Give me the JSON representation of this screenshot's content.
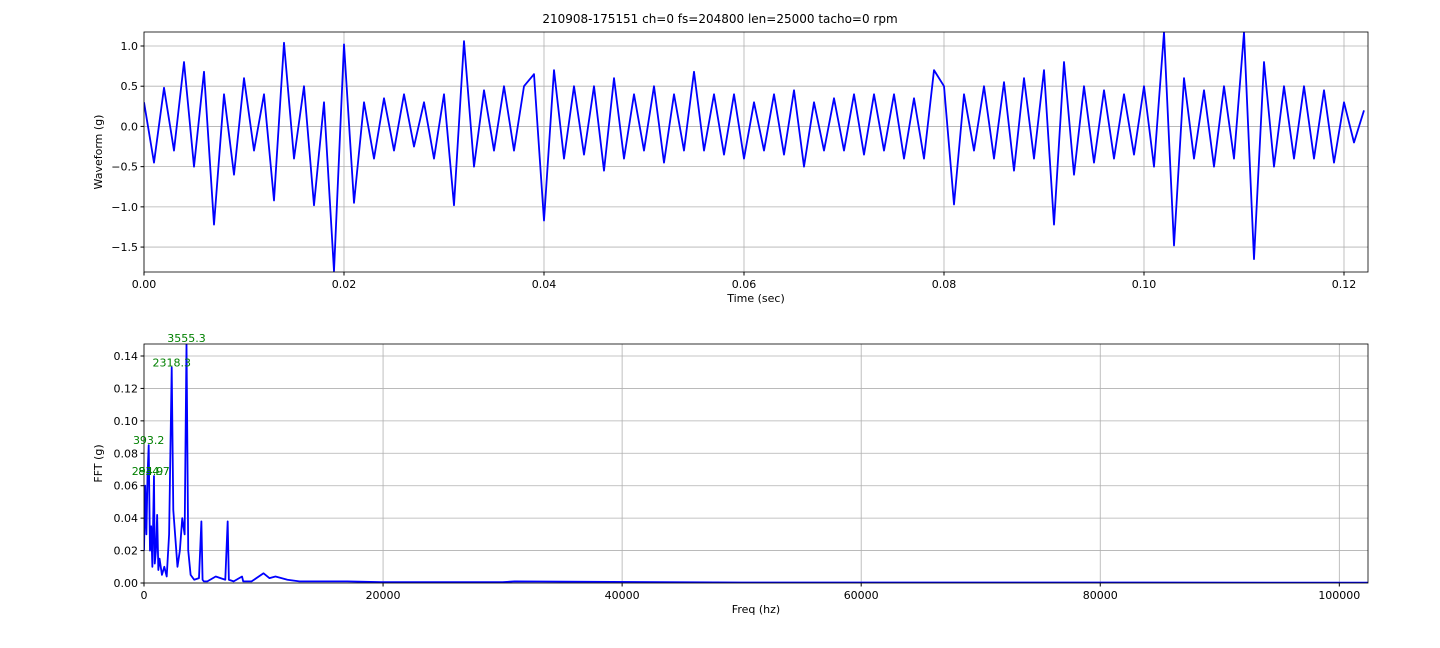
{
  "chart_data": [
    {
      "type": "line",
      "title": "210908-175151 ch=0 fs=204800 len=25000 tacho=0 rpm",
      "xlabel": "Time (sec)",
      "ylabel": "Waveform (g)",
      "color": "#0000ff",
      "grid": true,
      "xlim": [
        0,
        0.1224
      ],
      "ylim": [
        -1.81,
        1.174
      ],
      "xticks": [
        {
          "value": 0,
          "label": "0.00"
        },
        {
          "value": 0.02,
          "label": "0.02"
        },
        {
          "value": 0.04,
          "label": "0.04"
        },
        {
          "value": 0.06,
          "label": "0.06"
        },
        {
          "value": 0.08,
          "label": "0.08"
        },
        {
          "value": 0.1,
          "label": "0.10"
        },
        {
          "value": 0.12,
          "label": "0.12"
        }
      ],
      "yticks": [
        {
          "value": 1,
          "label": "1.0"
        },
        {
          "value": 0.5,
          "label": "0.5"
        },
        {
          "value": 0,
          "label": "0.0"
        },
        {
          "value": -0.5,
          "label": "−0.5"
        },
        {
          "value": -1,
          "label": "−1.0"
        },
        {
          "value": -1.5,
          "label": "−1.5"
        }
      ],
      "x": [
        0,
        0.001,
        0.002,
        0.003,
        0.004,
        0.005,
        0.006,
        0.007,
        0.008,
        0.009,
        0.01,
        0.011,
        0.012,
        0.013,
        0.014,
        0.015,
        0.016,
        0.017,
        0.018,
        0.019,
        0.02,
        0.021,
        0.022,
        0.023,
        0.024,
        0.025,
        0.026,
        0.027,
        0.028,
        0.029,
        0.03,
        0.031,
        0.032,
        0.033,
        0.034,
        0.035,
        0.036,
        0.037,
        0.038,
        0.039,
        0.04,
        0.041,
        0.042,
        0.043,
        0.044,
        0.045,
        0.046,
        0.047,
        0.048,
        0.049,
        0.05,
        0.051,
        0.052,
        0.053,
        0.054,
        0.055,
        0.056,
        0.057,
        0.058,
        0.059,
        0.06,
        0.061,
        0.062,
        0.063,
        0.064,
        0.065,
        0.066,
        0.067,
        0.068,
        0.069,
        0.07,
        0.071,
        0.072,
        0.073,
        0.074,
        0.075,
        0.076,
        0.077,
        0.078,
        0.079,
        0.08,
        0.081,
        0.082,
        0.083,
        0.084,
        0.085,
        0.086,
        0.087,
        0.088,
        0.089,
        0.09,
        0.091,
        0.092,
        0.093,
        0.094,
        0.095,
        0.096,
        0.097,
        0.098,
        0.099,
        0.1,
        0.101,
        0.102,
        0.103,
        0.104,
        0.105,
        0.106,
        0.107,
        0.108,
        0.109,
        0.11,
        0.111,
        0.112,
        0.113,
        0.114,
        0.115,
        0.116,
        0.117,
        0.118,
        0.119,
        0.12,
        0.121,
        0.122
      ],
      "values": [
        0.3,
        -0.45,
        0.48,
        -0.3,
        0.8,
        -0.5,
        0.68,
        -1.22,
        0.4,
        -0.6,
        0.6,
        -0.3,
        0.4,
        -0.92,
        1.04,
        -0.4,
        0.5,
        -0.98,
        0.3,
        -1.8,
        1.02,
        -0.95,
        0.3,
        -0.4,
        0.35,
        -0.3,
        0.4,
        -0.25,
        0.3,
        -0.4,
        0.4,
        -0.98,
        1.06,
        -0.5,
        0.45,
        -0.3,
        0.5,
        -0.3,
        0.5,
        0.65,
        -1.17,
        0.7,
        -0.4,
        0.5,
        -0.35,
        0.5,
        -0.55,
        0.6,
        -0.4,
        0.4,
        -0.3,
        0.5,
        -0.45,
        0.4,
        -0.3,
        0.68,
        -0.3,
        0.4,
        -0.35,
        0.4,
        -0.4,
        0.3,
        -0.3,
        0.4,
        -0.35,
        0.45,
        -0.5,
        0.3,
        -0.3,
        0.35,
        -0.3,
        0.4,
        -0.35,
        0.4,
        -0.3,
        0.4,
        -0.4,
        0.35,
        -0.4,
        0.7,
        0.5,
        -0.97,
        0.4,
        -0.3,
        0.5,
        -0.4,
        0.55,
        -0.55,
        0.6,
        -0.4,
        0.7,
        -1.22,
        0.8,
        -0.6,
        0.5,
        -0.45,
        0.45,
        -0.4,
        0.4,
        -0.35,
        0.5,
        -0.5,
        1.17,
        -1.48,
        0.6,
        -0.4,
        0.45,
        -0.5,
        0.5,
        -0.4,
        1.17,
        -1.65,
        0.8,
        -0.5,
        0.5,
        -0.4,
        0.5,
        -0.4,
        0.45,
        -0.45,
        0.3,
        -0.2,
        0.2
      ]
    },
    {
      "type": "line",
      "xlabel": "Freq (hz)",
      "ylabel": "FFT (g)",
      "color": "#0000ff",
      "grid": true,
      "annotation_color": "#008000",
      "xlim": [
        0,
        102400
      ],
      "ylim": [
        0,
        0.1474
      ],
      "xticks": [
        0,
        20000,
        40000,
        60000,
        80000,
        100000
      ],
      "yticks": [
        {
          "value": 0,
          "label": "0.00"
        },
        {
          "value": 0.02,
          "label": "0.02"
        },
        {
          "value": 0.04,
          "label": "0.04"
        },
        {
          "value": 0.06,
          "label": "0.06"
        },
        {
          "value": 0.08,
          "label": "0.08"
        },
        {
          "value": 0.1,
          "label": "0.10"
        },
        {
          "value": 0.12,
          "label": "0.12"
        },
        {
          "value": 0.14,
          "label": "0.14"
        }
      ],
      "x": [
        0,
        100,
        200,
        294.9,
        393.2,
        500,
        600,
        700,
        834.7,
        900,
        1000,
        1100,
        1200,
        1300,
        1500,
        1700,
        1900,
        2100,
        2318.3,
        2450,
        2600,
        2800,
        3000,
        3200,
        3400,
        3555.3,
        3700,
        3900,
        4200,
        4600,
        4800,
        4900,
        5000,
        5300,
        6000,
        6800,
        7000,
        7100,
        7500,
        8200,
        8300,
        9000,
        10000,
        10500,
        11000,
        12000,
        13000,
        15000,
        17000,
        20000,
        30000,
        31000,
        50000,
        80000,
        100000,
        102400
      ],
      "values": [
        0.02,
        0.06,
        0.03,
        0.066,
        0.085,
        0.02,
        0.035,
        0.01,
        0.066,
        0.012,
        0.02,
        0.042,
        0.008,
        0.015,
        0.005,
        0.01,
        0.004,
        0.03,
        0.133,
        0.045,
        0.03,
        0.01,
        0.02,
        0.04,
        0.03,
        0.148,
        0.02,
        0.005,
        0.002,
        0.003,
        0.038,
        0.002,
        0.001,
        0.001,
        0.004,
        0.002,
        0.038,
        0.002,
        0.001,
        0.004,
        0.001,
        0.001,
        0.006,
        0.003,
        0.004,
        0.002,
        0.001,
        0.001,
        0.001,
        0.0005,
        0.0005,
        0.001,
        0.0003,
        0.0003,
        0.0002,
        0.0002
      ],
      "annotations": [
        {
          "x": 3555.3,
          "y": 0.148,
          "text": "3555.3"
        },
        {
          "x": 2318.3,
          "y": 0.133,
          "text": "2318.3"
        },
        {
          "x": 393.2,
          "y": 0.085,
          "text": "393.2"
        },
        {
          "x": 294.9,
          "y": 0.066,
          "text": "294.9"
        },
        {
          "x": 834.7,
          "y": 0.066,
          "text": "834.7"
        }
      ]
    }
  ]
}
